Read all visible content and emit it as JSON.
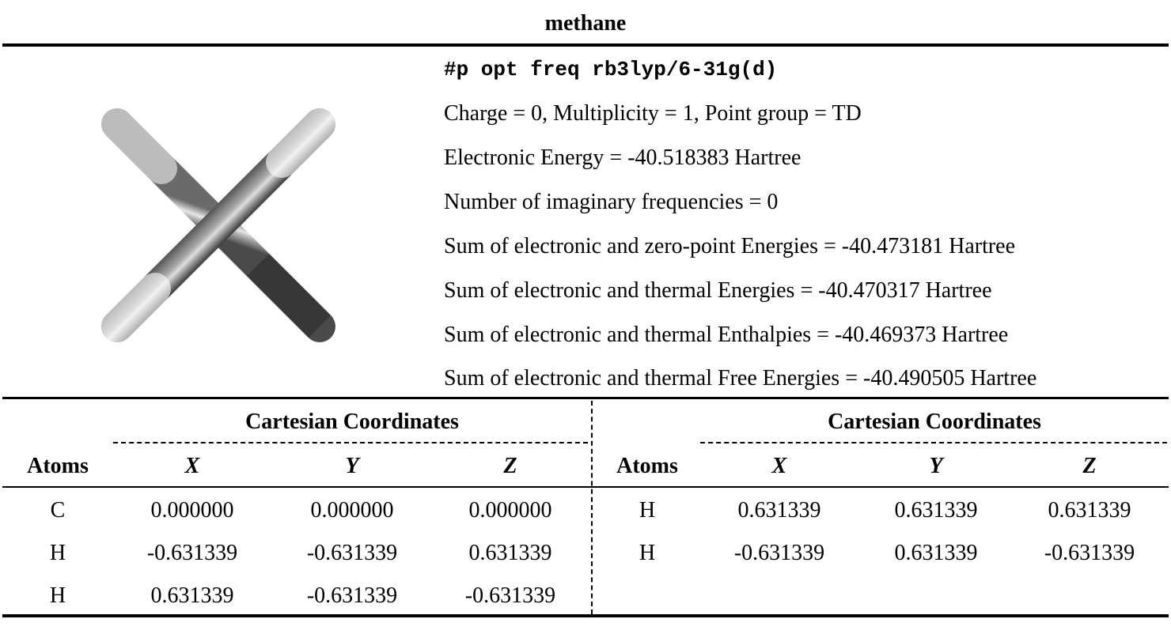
{
  "title": "methane",
  "route": "#p opt freq rb3lyp/6-31g(d)",
  "info_lines": [
    "Charge = 0, Multiplicity = 1, Point group = TD",
    "Electronic Energy = -40.518383 Hartree",
    "Number of imaginary frequencies = 0",
    "Sum of electronic and zero-point Energies = -40.473181 Hartree",
    "Sum of electronic and thermal Energies = -40.470317 Hartree",
    "Sum of electronic and thermal Enthalpies = -40.469373 Hartree",
    "Sum of electronic and thermal Free Energies = -40.490505 Hartree"
  ],
  "table": {
    "group_header": "Cartesian Coordinates",
    "columns": [
      "Atoms",
      "X",
      "Y",
      "Z"
    ],
    "left_rows": [
      [
        "C",
        "0.000000",
        "0.000000",
        "0.000000"
      ],
      [
        "H",
        "-0.631339",
        "-0.631339",
        "0.631339"
      ],
      [
        "H",
        "0.631339",
        "-0.631339",
        "-0.631339"
      ]
    ],
    "right_rows": [
      [
        "H",
        "0.631339",
        "0.631339",
        "0.631339"
      ],
      [
        "H",
        "-0.631339",
        "0.631339",
        "-0.631339"
      ]
    ]
  }
}
